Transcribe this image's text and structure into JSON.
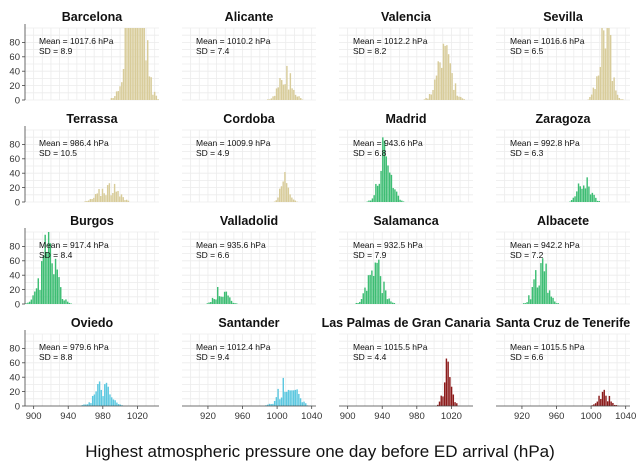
{
  "chart_data": {
    "type": "histogram",
    "xlabel": "Highest atmospheric pressure one day before ED arrival (hPa)",
    "xlim": [
      890,
      1045
    ],
    "ylim": [
      0,
      100
    ],
    "xticks_odd_columns": [
      900,
      940,
      980,
      1020
    ],
    "xticks_even_columns": [
      920,
      960,
      1000,
      1040
    ],
    "yticks": [
      0,
      20,
      40,
      60,
      80
    ],
    "colors": {
      "coastal": "#d8cc9a",
      "inland": "#3dbd73",
      "north": "#5cc8e0",
      "canary": "#8b1a1a"
    },
    "panels": [
      {
        "name": "Barcelona",
        "mean_label": "Mean = 1017.6 hPa",
        "sd_label": "SD = 8.9",
        "mean": 1017.6,
        "sd": 8.9,
        "n": 2400,
        "color": "coastal"
      },
      {
        "name": "Alicante",
        "mean_label": "Mean = 1010.2 hPa",
        "sd_label": "SD = 7.4",
        "mean": 1010.2,
        "sd": 7.4,
        "n": 330,
        "color": "coastal"
      },
      {
        "name": "Valencia",
        "mean_label": "Mean = 1012.2 hPa",
        "sd_label": "SD = 8.2",
        "mean": 1012.2,
        "sd": 8.2,
        "n": 560,
        "color": "coastal"
      },
      {
        "name": "Sevilla",
        "mean_label": "Mean = 1016.6 hPa",
        "sd_label": "SD = 6.5",
        "mean": 1016.6,
        "sd": 6.5,
        "n": 950,
        "color": "coastal"
      },
      {
        "name": "Terrassa",
        "mean_label": "Mean = 986.4 hPa",
        "sd_label": "SD = 10.5",
        "mean": 986.4,
        "sd": 10.5,
        "n": 280,
        "color": "coastal"
      },
      {
        "name": "Cordoba",
        "mean_label": "Mean = 1009.9 hPa",
        "sd_label": "SD = 4.9",
        "mean": 1009.9,
        "sd": 4.9,
        "n": 200,
        "color": "coastal"
      },
      {
        "name": "Madrid",
        "mean_label": "Mean = 943.6 hPa",
        "sd_label": "SD = 6.8",
        "mean": 943.6,
        "sd": 6.8,
        "n": 650,
        "color": "inland"
      },
      {
        "name": "Zaragoza",
        "mean_label": "Mean = 992.8 hPa",
        "sd_label": "SD = 6.3",
        "mean": 992.8,
        "sd": 6.3,
        "n": 270,
        "color": "inland"
      },
      {
        "name": "Burgos",
        "mean_label": "Mean = 917.4 hPa",
        "sd_label": "SD = 8.4",
        "mean": 917.4,
        "sd": 8.4,
        "n": 820,
        "color": "inland"
      },
      {
        "name": "Valladolid",
        "mean_label": "Mean = 935.6 hPa",
        "sd_label": "SD = 6.6",
        "mean": 935.6,
        "sd": 6.6,
        "n": 160,
        "color": "inland"
      },
      {
        "name": "Salamanca",
        "mean_label": "Mean = 932.5 hPa",
        "sd_label": "SD = 7.9",
        "mean": 932.5,
        "sd": 7.9,
        "n": 500,
        "color": "inland"
      },
      {
        "name": "Albacete",
        "mean_label": "Mean = 942.2 hPa",
        "sd_label": "SD = 7.2",
        "mean": 942.2,
        "sd": 7.2,
        "n": 480,
        "color": "inland"
      },
      {
        "name": "Oviedo",
        "mean_label": "Mean = 979.6 hPa",
        "sd_label": "SD = 8.8",
        "mean": 979.6,
        "sd": 8.8,
        "n": 300,
        "color": "north"
      },
      {
        "name": "Santander",
        "mean_label": "Mean = 1012.4 hPa",
        "sd_label": "SD = 9.4",
        "mean": 1012.4,
        "sd": 9.4,
        "n": 370,
        "color": "north"
      },
      {
        "name": "Las Palmas de Gran Canaria",
        "mean_label": "Mean = 1015.5 hPa",
        "sd_label": "SD = 4.4",
        "mean": 1015.5,
        "sd": 4.4,
        "n": 300,
        "color": "canary"
      },
      {
        "name": "Santa Cruz de Tenerife",
        "mean_label": "Mean = 1015.5 hPa",
        "sd_label": "SD = 6.6",
        "mean": 1015.5,
        "sd": 6.6,
        "n": 120,
        "color": "canary"
      }
    ]
  }
}
